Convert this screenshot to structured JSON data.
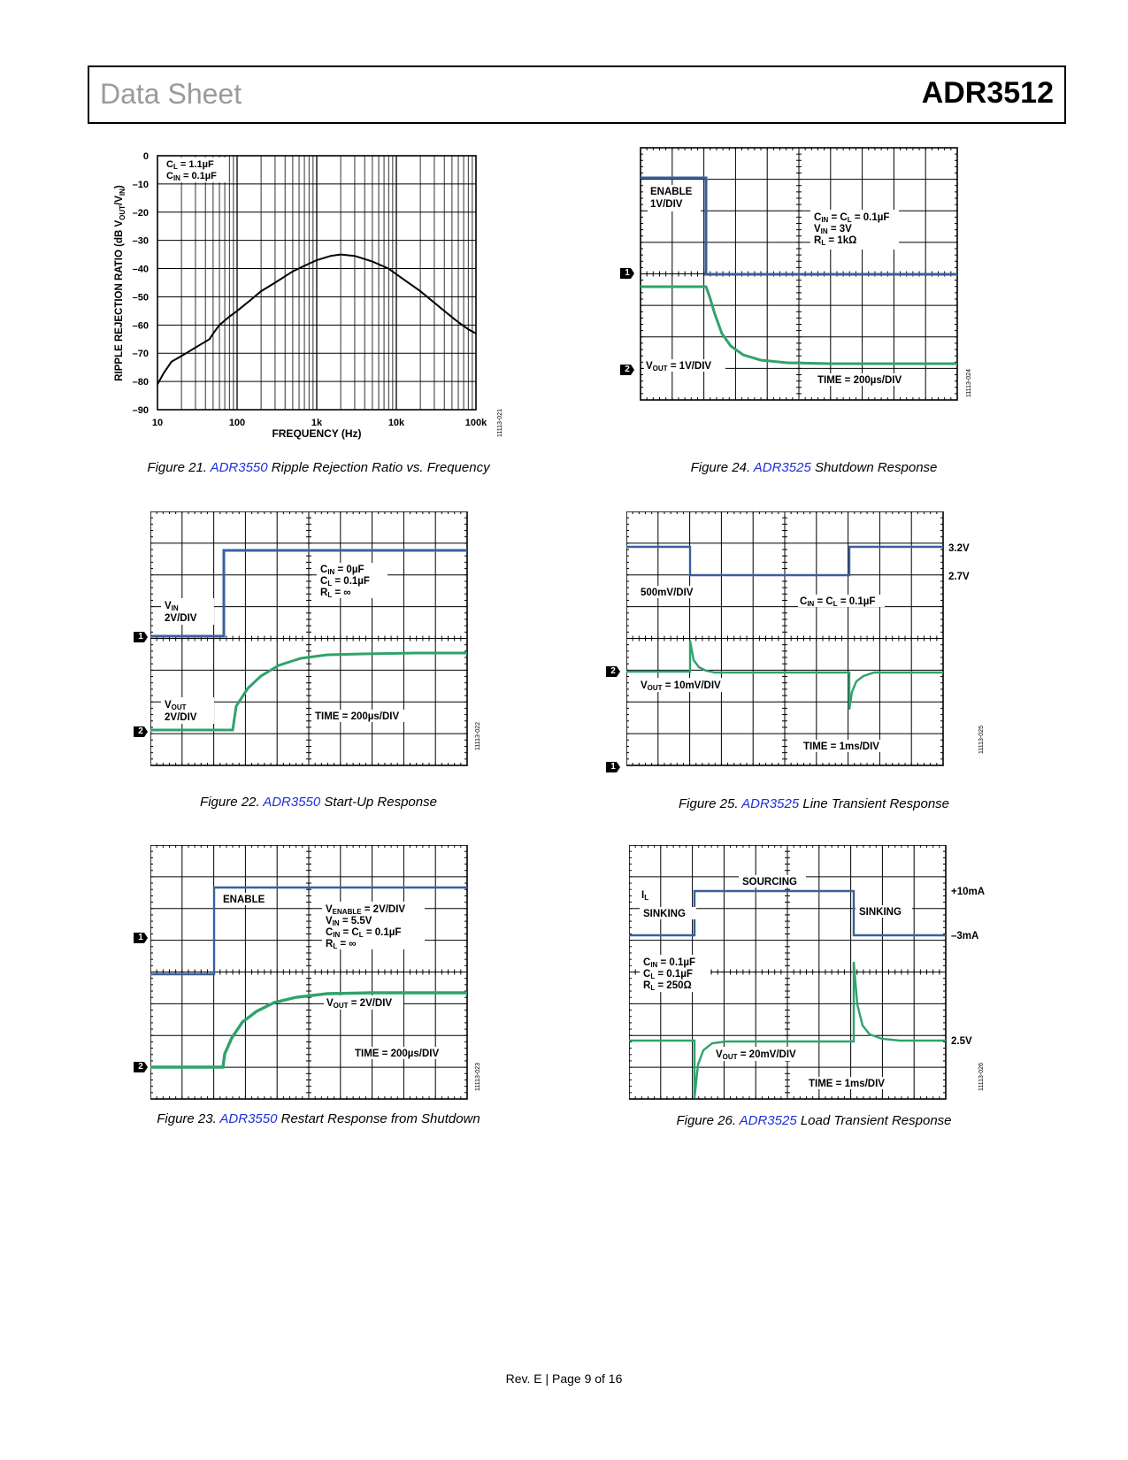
{
  "header": {
    "left_title": "Data Sheet",
    "part_number": "ADR3512"
  },
  "footer": {
    "text": "Rev. E | Page 9 of 16"
  },
  "colors": {
    "blue_trace": "#3a5f9e",
    "green_trace": "#2fa36b",
    "link": "#1f2fd6"
  },
  "fig21": {
    "caption_prefix": "Figure 21. ",
    "caption_link": "ADR3550",
    "caption_suffix": " Ripple Rejection Ratio vs. Frequency",
    "code": "11113-021",
    "legend": [
      "CL = 1.1µF",
      "CIN = 0.1µF"
    ],
    "chart_data": {
      "type": "line",
      "xlabel": "FREQUENCY (Hz)",
      "ylabel": "RIPPLE REJECTION RATIO (dB VOUT/VIN)",
      "x_scale": "log",
      "xlim": [
        10,
        100000
      ],
      "ylim": [
        -90,
        0
      ],
      "x_tick_labels": [
        "10",
        "100",
        "1k",
        "10k",
        "100k"
      ],
      "y_tick_labels": [
        "0",
        "–10",
        "–20",
        "–30",
        "–40",
        "–50",
        "–60",
        "–70",
        "–80",
        "–90"
      ],
      "grid": true,
      "series": [
        {
          "x": [
            10,
            12,
            15,
            20,
            30,
            45,
            50,
            60,
            80,
            100,
            150,
            200,
            300,
            500,
            700,
            1000,
            1500,
            2000,
            3000,
            5000,
            8000,
            10000,
            20000,
            40000,
            60000,
            80000,
            100000
          ],
          "y": [
            -81,
            -77,
            -73,
            -71,
            -68,
            -65,
            -63,
            -60,
            -57,
            -55,
            -51,
            -48,
            -45,
            -41,
            -39,
            -37,
            -35.5,
            -35,
            -35.5,
            -37.5,
            -40,
            -42,
            -48,
            -55,
            -59,
            -61.5,
            -63
          ]
        }
      ]
    }
  },
  "fig22": {
    "caption_prefix": "Figure 22. ",
    "caption_link": "ADR3550",
    "caption_suffix": " Start-Up Response",
    "code": "11113-022",
    "conditions": [
      "CIN = 0µF",
      "CL = 0.1µF",
      "RL = ∞"
    ],
    "ch1_label": "VIN",
    "ch1_scale": "2V/DIV",
    "ch2_label": "VOUT",
    "ch2_scale": "2V/DIV",
    "time": "TIME = 200µs/DIV",
    "marker1": "1",
    "marker2": "2"
  },
  "fig23": {
    "caption_prefix": "Figure 23. ",
    "caption_link": "ADR3550",
    "caption_suffix": " Restart Response from Shutdown",
    "code": "11113-023",
    "enable_label": "ENABLE",
    "conditions": [
      "VENABLE = 2V/DIV",
      "VIN = 5.5V",
      "CIN = CL = 0.1µF",
      "RL = ∞"
    ],
    "vout_label": "VOUT = 2V/DIV",
    "time": "TIME = 200µs/DIV",
    "marker1": "1",
    "marker2": "2"
  },
  "fig24": {
    "caption_prefix": "Figure 24. ",
    "caption_link": "ADR3525",
    "caption_suffix": " Shutdown Response",
    "code": "11113-024",
    "enable_label": "ENABLE",
    "enable_scale": "1V/DIV",
    "conditions": [
      "CIN = CL = 0.1µF",
      "VIN = 3V",
      "RL = 1kΩ"
    ],
    "vout_label": "VOUT = 1V/DIV",
    "time": "TIME = 200µs/DIV",
    "marker1": "1",
    "marker2": "2"
  },
  "fig25": {
    "caption_prefix": "Figure 25. ",
    "caption_link": "ADR3525",
    "caption_suffix": " Line Transient Response",
    "code": "11113-025",
    "scale_label": "500mV/DIV",
    "conditions": "CIN = CL = 0.1µF",
    "vout_label": "VOUT = 10mV/DIV",
    "time": "TIME = 1ms/DIV",
    "level_high": "3.2V",
    "level_low": "2.7V",
    "marker1": "1",
    "marker2": "2"
  },
  "fig26": {
    "caption_prefix": "Figure 26. ",
    "caption_link": "ADR3525",
    "caption_suffix": " Load Transient Response",
    "code": "11113-026",
    "il_label": "IL",
    "sourcing": "SOURCING",
    "sinking_left": "SINKING",
    "sinking_right": "SINKING",
    "conditions": [
      "CIN = 0.1µF",
      "CL = 0.1µF",
      "RL = 250Ω"
    ],
    "vout_label": "VOUT = 20mV/DIV",
    "time": "TIME = 1ms/DIV",
    "level_pos": "+10mA",
    "level_neg": "–3mA",
    "level_v": "2.5V"
  }
}
